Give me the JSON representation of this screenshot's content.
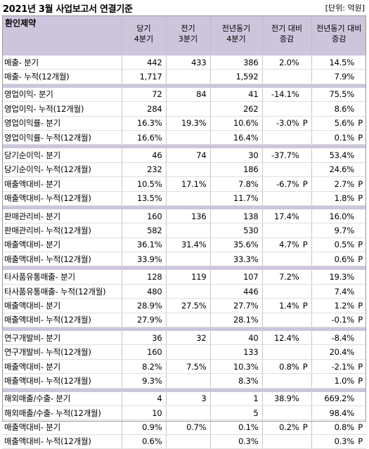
{
  "title": "2021년 3월 사업보고서 연결기준",
  "unit": "[단위: 억원]",
  "headers": [
    "환인제약",
    "당기 4분기",
    "전기 3분기",
    "전년동기 4분기",
    "전기 대비 증감",
    "전년동기 대비 증감"
  ],
  "groups": [
    {
      "rows": [
        [
          "매출- 분기",
          "442",
          "433",
          "386",
          "2.0%",
          "",
          "14.5%",
          ""
        ],
        [
          "매출- 누적(12개월)",
          "1,717",
          "",
          "1,592",
          "",
          "",
          "7.9%",
          ""
        ]
      ]
    },
    {
      "rows": [
        [
          "영업이익- 분기",
          "72",
          "84",
          "41",
          "-14.1%",
          "",
          "75.5%",
          ""
        ],
        [
          "영업이익- 누적(12개월)",
          "284",
          "",
          "262",
          "",
          "",
          "8.6%",
          ""
        ],
        [
          "영업이익률- 분기",
          "16.3%",
          "19.3%",
          "10.6%",
          "-3.0%",
          "P",
          "5.6%",
          "P"
        ],
        [
          "영업이익률- 누적(12개월)",
          "16.6%",
          "",
          "16.4%",
          "",
          "",
          "0.1%",
          "P"
        ]
      ]
    },
    {
      "rows": [
        [
          "당기순이익- 분기",
          "46",
          "74",
          "30",
          "-37.7%",
          "",
          "53.4%",
          ""
        ],
        [
          "당기순이익- 누적(12개월)",
          "232",
          "",
          "186",
          "",
          "",
          "24.6%",
          ""
        ],
        [
          "매출액대비- 분기",
          "10.5%",
          "17.1%",
          "7.8%",
          "-6.7%",
          "P",
          "2.7%",
          "P"
        ],
        [
          "매출액대비- 누적(12개월)",
          "13.5%",
          "",
          "11.7%",
          "",
          "",
          "1.8%",
          "P"
        ]
      ]
    },
    {
      "rows": [
        [
          "판매관리비- 분기",
          "160",
          "136",
          "138",
          "17.4%",
          "",
          "16.0%",
          ""
        ],
        [
          "판매관리비- 누적(12개월)",
          "582",
          "",
          "530",
          "",
          "",
          "9.7%",
          ""
        ],
        [
          "매출액대비- 분기",
          "36.1%",
          "31.4%",
          "35.6%",
          "4.7%",
          "P",
          "0.5%",
          "P"
        ],
        [
          "매출액대비- 누적(12개월)",
          "33.9%",
          "",
          "33.3%",
          "",
          "",
          "0.6%",
          "P"
        ]
      ]
    },
    {
      "rows": [
        [
          "타사품유통매출- 분기",
          "128",
          "119",
          "107",
          "7.2%",
          "",
          "19.3%",
          ""
        ],
        [
          "타사품유통매출- 누적(12개월)",
          "480",
          "",
          "446",
          "",
          "",
          "7.4%",
          ""
        ],
        [
          "매출액대비- 분기",
          "28.9%",
          "27.5%",
          "27.7%",
          "1.4%",
          "P",
          "1.2%",
          "P"
        ],
        [
          "매출액대비- 누적(12개월)",
          "27.9%",
          "",
          "28.1%",
          "",
          "",
          "-0.1%",
          "P"
        ]
      ]
    },
    {
      "rows": [
        [
          "연구개발비- 분기",
          "36",
          "32",
          "40",
          "12.4%",
          "",
          "-8.4%",
          ""
        ],
        [
          "연구개발비- 누적(12개월)",
          "160",
          "",
          "133",
          "",
          "",
          "20.4%",
          ""
        ],
        [
          "매출액대비- 분기",
          "8.2%",
          "7.5%",
          "10.3%",
          "0.8%",
          "P",
          "-2.1%",
          "P"
        ],
        [
          "매출액대비- 누적(12개월)",
          "9.3%",
          "",
          "8.3%",
          "",
          "",
          "1.0%",
          "P"
        ]
      ]
    },
    {
      "rows": [
        [
          "해외매출/수출- 분기",
          "4",
          "3",
          "1",
          "38.9%",
          "",
          "669.2%",
          ""
        ],
        [
          "해외매출/수출- 누적(12개월)",
          "10",
          "",
          "5",
          "",
          "",
          "98.4%",
          ""
        ],
        [
          "매출액대비- 분기",
          "0.9%",
          "0.7%",
          "0.1%",
          "0.2%",
          "P",
          "0.8%",
          "P"
        ],
        [
          "매출액대비- 누적(12개월)",
          "0.6%",
          "",
          "0.3%",
          "",
          "",
          "0.3%",
          "P"
        ]
      ]
    }
  ]
}
